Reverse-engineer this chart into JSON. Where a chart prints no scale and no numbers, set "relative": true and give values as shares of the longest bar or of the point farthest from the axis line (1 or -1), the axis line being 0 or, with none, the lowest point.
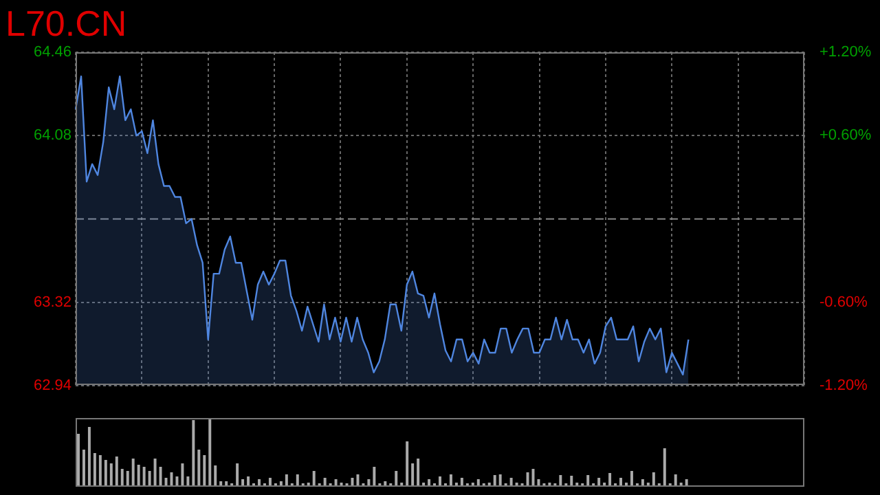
{
  "chart_data": [
    {
      "type": "area",
      "title": "L70.CN",
      "categories": [
        null,
        null,
        null,
        null,
        null,
        null,
        null,
        null,
        null,
        null,
        null,
        null,
        null,
        null,
        null,
        null,
        null,
        null,
        null,
        null,
        null,
        null,
        null,
        null,
        null,
        null,
        null,
        null,
        null,
        null,
        null,
        null,
        null,
        null,
        null,
        null,
        null,
        null,
        null,
        null,
        null,
        null,
        null,
        null,
        null,
        null,
        null,
        null,
        null,
        null,
        null,
        null,
        null,
        null,
        null,
        null,
        null,
        null,
        null,
        null,
        null,
        null,
        null,
        null,
        null,
        null,
        null,
        null,
        null,
        null,
        null,
        null,
        null,
        null,
        null,
        null,
        null,
        null,
        null,
        null,
        null,
        null,
        null,
        null,
        null,
        null,
        null,
        null,
        null,
        null,
        null,
        null,
        null,
        null,
        null,
        null,
        null,
        null,
        null,
        null,
        null,
        null,
        null,
        null,
        null,
        null,
        null,
        null,
        null,
        null,
        null,
        null,
        null,
        null,
        null,
        null,
        null,
        null,
        null,
        null,
        null,
        null,
        null,
        null,
        null,
        null,
        null,
        null,
        null,
        null,
        null,
        null,
        null
      ],
      "ylim": [
        62.94,
        64.46
      ],
      "yticks": [
        64.46,
        64.08,
        63.32,
        62.94
      ],
      "y2lim": [
        -1.2,
        1.2
      ],
      "y2ticks": [
        {
          "value": 1.2,
          "label": "+1.20%"
        },
        {
          "value": 0.6,
          "label": "+0.60%"
        },
        {
          "value": -0.6,
          "label": "-0.60%"
        },
        {
          "value": -1.2,
          "label": "-1.20%"
        }
      ],
      "ref_lines": [
        {
          "axis": "y",
          "value": 63.7,
          "color": "#888888",
          "line_style": "dashed"
        }
      ],
      "grid": true,
      "legend": false,
      "marker": "none",
      "tick_labels": "y",
      "series": [
        {
          "color": "#4f86e0",
          "values": [
            64.2,
            64.35,
            63.87,
            63.95,
            63.9,
            64.05,
            64.3,
            64.2,
            64.35,
            64.15,
            64.2,
            64.08,
            64.1,
            64.0,
            64.15,
            63.95,
            63.85,
            63.85,
            63.8,
            63.8,
            63.68,
            63.7,
            63.58,
            63.5,
            63.15,
            63.45,
            63.45,
            63.56,
            63.62,
            63.5,
            63.5,
            63.37,
            63.24,
            63.4,
            63.46,
            63.4,
            63.45,
            63.51,
            63.51,
            63.35,
            63.28,
            63.19,
            63.3,
            63.22,
            63.14,
            63.31,
            63.15,
            63.25,
            63.14,
            63.25,
            63.14,
            63.25,
            63.15,
            63.09,
            63.0,
            63.05,
            63.15,
            63.31,
            63.31,
            63.19,
            63.4,
            63.46,
            63.36,
            63.35,
            63.25,
            63.36,
            63.22,
            63.1,
            63.05,
            63.15,
            63.15,
            63.05,
            63.09,
            63.04,
            63.15,
            63.09,
            63.09,
            63.2,
            63.2,
            63.09,
            63.15,
            63.2,
            63.2,
            63.09,
            63.09,
            63.15,
            63.15,
            63.25,
            63.15,
            63.24,
            63.15,
            63.15,
            63.09,
            63.15,
            63.04,
            63.09,
            63.21,
            63.25,
            63.15,
            63.15,
            63.15,
            63.21,
            63.05,
            63.14,
            63.2,
            63.15,
            63.2,
            63.0,
            63.09,
            63.04,
            62.99,
            63.15,
            null,
            null,
            null,
            null,
            null,
            null,
            null,
            null,
            null,
            null,
            null,
            null,
            null,
            null,
            null,
            null,
            null,
            null,
            null,
            null,
            null
          ]
        }
      ]
    },
    {
      "type": "bar",
      "relative": true,
      "tick_labels": false,
      "legend": false,
      "categories": [
        null,
        null,
        null,
        null,
        null,
        null,
        null,
        null,
        null,
        null,
        null,
        null,
        null,
        null,
        null,
        null,
        null,
        null,
        null,
        null,
        null,
        null,
        null,
        null,
        null,
        null,
        null,
        null,
        null,
        null,
        null,
        null,
        null,
        null,
        null,
        null,
        null,
        null,
        null,
        null,
        null,
        null,
        null,
        null,
        null,
        null,
        null,
        null,
        null,
        null,
        null,
        null,
        null,
        null,
        null,
        null,
        null,
        null,
        null,
        null,
        null,
        null,
        null,
        null,
        null,
        null,
        null,
        null,
        null,
        null,
        null,
        null,
        null,
        null,
        null,
        null,
        null,
        null,
        null,
        null,
        null,
        null,
        null,
        null,
        null,
        null,
        null,
        null,
        null,
        null,
        null,
        null,
        null,
        null,
        null,
        null,
        null,
        null,
        null,
        null,
        null,
        null,
        null,
        null,
        null,
        null,
        null,
        null,
        null,
        null,
        null,
        null,
        null,
        null,
        null,
        null,
        null,
        null,
        null,
        null,
        null,
        null,
        null,
        null,
        null,
        null,
        null,
        null,
        null,
        null,
        null,
        null,
        null
      ],
      "series": [
        {
          "color": "#aaaaaa",
          "values": [
            0.77,
            0.54,
            0.87,
            0.49,
            0.46,
            0.39,
            0.34,
            0.44,
            0.26,
            0.23,
            0.41,
            0.32,
            0.29,
            0.23,
            0.41,
            0.29,
            0.13,
            0.21,
            0.15,
            0.34,
            0.15,
            0.97,
            0.54,
            0.46,
            1,
            0.31,
            0.08,
            0.08,
            0.05,
            0.34,
            0.11,
            0.15,
            0.05,
            0.11,
            0.05,
            0.13,
            0.05,
            0.08,
            0.18,
            0.05,
            0.18,
            0.05,
            0.06,
            0.23,
            0.05,
            0.13,
            0.05,
            0.11,
            0.06,
            0.05,
            0.13,
            0.18,
            0.05,
            0.11,
            0.29,
            0.05,
            0.08,
            0.05,
            0.23,
            0.06,
            0.66,
            0.34,
            0.41,
            0.06,
            0.11,
            0.05,
            0.15,
            0.05,
            0.18,
            0.06,
            0.13,
            0.05,
            0.06,
            0.11,
            0.05,
            0.06,
            0.17,
            0.18,
            0.05,
            0.13,
            0.06,
            0.05,
            0.21,
            0.26,
            0.11,
            0.05,
            0.06,
            0.05,
            0.17,
            0.05,
            0.16,
            0.06,
            0.05,
            0.17,
            0.05,
            0.13,
            0.06,
            0.2,
            0.05,
            0.13,
            0.06,
            0.23,
            0.05,
            0.11,
            0.06,
            0.21,
            0.05,
            0.56,
            0.05,
            0.18,
            0.06,
            0.11,
            null,
            null,
            null,
            null,
            null,
            null,
            null,
            null,
            null,
            null,
            null,
            null,
            null,
            null,
            null,
            null,
            null,
            null,
            null,
            null,
            null
          ]
        }
      ]
    }
  ]
}
